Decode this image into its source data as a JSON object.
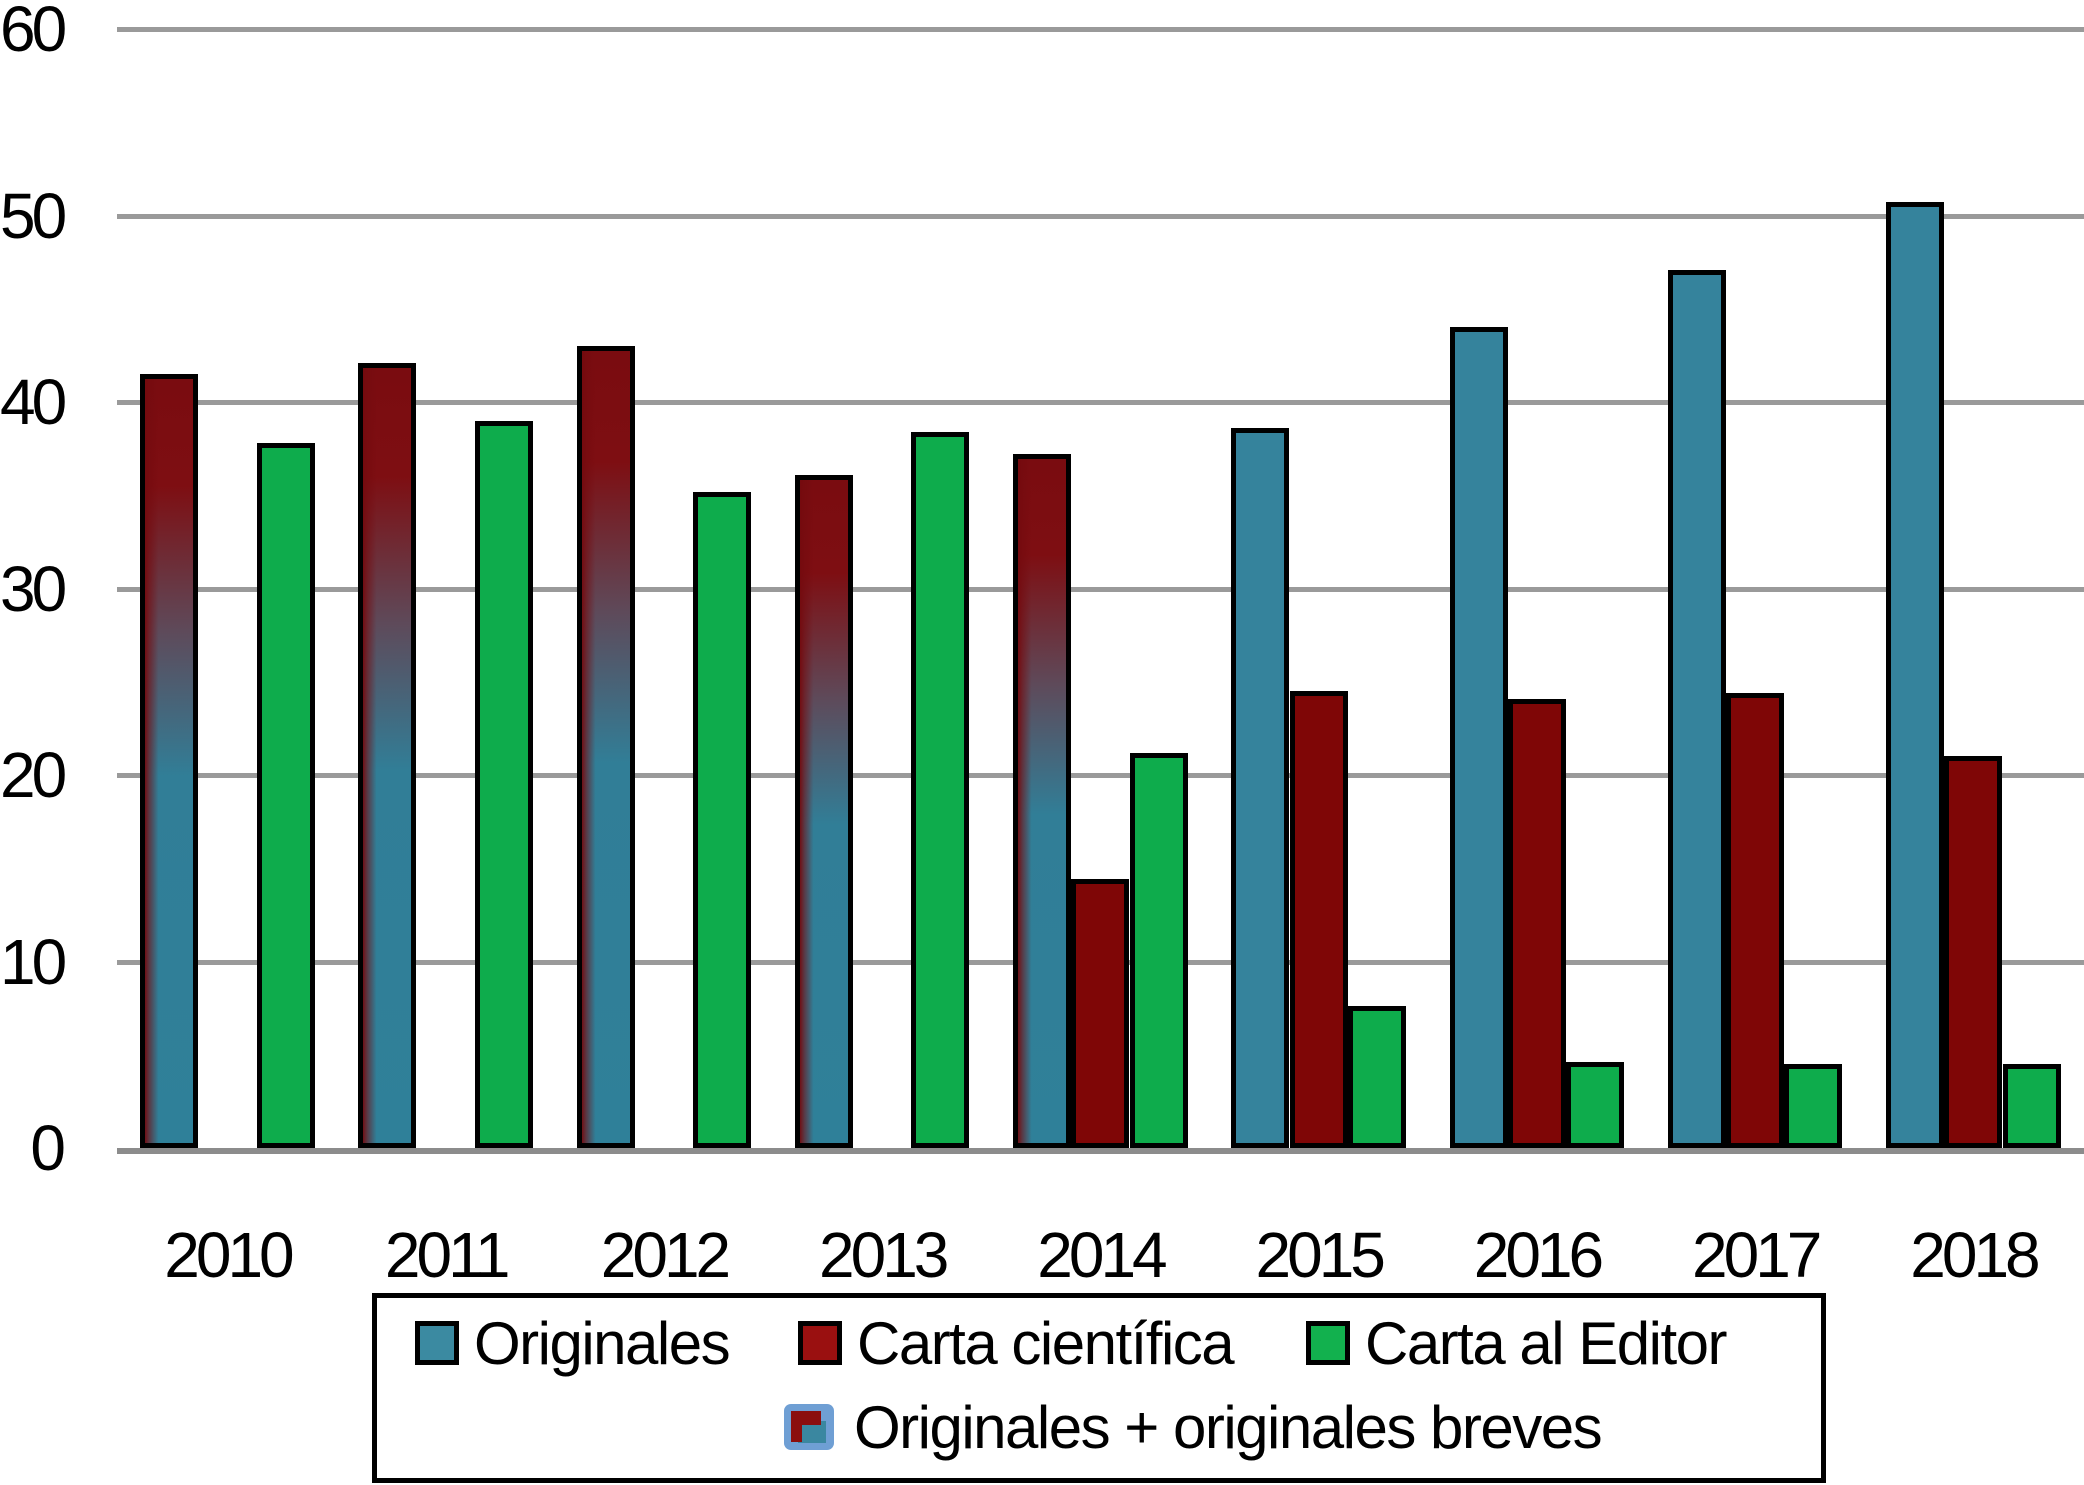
{
  "chart_data": {
    "type": "bar",
    "title": "",
    "xlabel": "",
    "ylabel": "",
    "categories": [
      "2010",
      "2011",
      "2012",
      "2013",
      "2014",
      "2015",
      "2016",
      "2017",
      "2018"
    ],
    "series": [
      {
        "name": "Originales",
        "color": "#35839C",
        "slot": 0,
        "style": "teal",
        "values": [
          null,
          null,
          null,
          null,
          null,
          38.6,
          44.0,
          47.1,
          50.7
        ]
      },
      {
        "name": "Carta científica",
        "color": "#7F0606",
        "slot": 1,
        "style": "red",
        "values": [
          null,
          null,
          null,
          null,
          14.4,
          24.5,
          24.1,
          24.4,
          21.0
        ]
      },
      {
        "name": "Carta al Editor",
        "color": "#0EAC4C",
        "slot": 2,
        "style": "green",
        "values": [
          37.8,
          39.0,
          35.2,
          38.4,
          21.2,
          7.6,
          4.6,
          4.5,
          4.5
        ]
      },
      {
        "name": "Originales + originales breves",
        "color": "gradient #7A0C10 to #2F8099",
        "slot": 0,
        "style": "grad",
        "values": [
          41.5,
          42.1,
          43.0,
          36.1,
          37.2,
          null,
          null,
          null,
          null
        ]
      }
    ],
    "ylim": [
      0,
      60
    ],
    "yticks": [
      0,
      10,
      20,
      30,
      40,
      50,
      60
    ],
    "grid": true,
    "gridline_color": "#9a9a9a",
    "bar_border_color": "#000000",
    "legend_position": "bottom",
    "legend_row1": [
      "Originales",
      "Carta científica",
      "Carta al Editor"
    ],
    "legend_row2": [
      "Originales + originales breves"
    ]
  }
}
